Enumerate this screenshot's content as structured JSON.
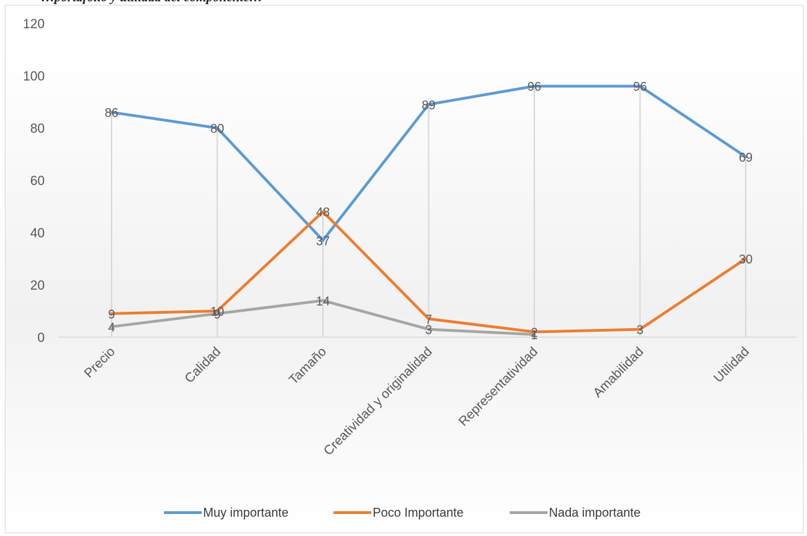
{
  "caption": "…portafolio y utilidad del componente…",
  "chart_data": {
    "type": "line",
    "categories": [
      "Precio",
      "Calidad",
      "Tamaño",
      "Creatividad y originalidad",
      "Representatividad",
      "Amabilidad",
      "Utilidad"
    ],
    "series": [
      {
        "name": "Muy importante",
        "color": "#5b9bd5",
        "values": [
          86,
          80,
          37,
          89,
          96,
          96,
          69
        ]
      },
      {
        "name": "Poco Importante",
        "color": "#ed7d31",
        "values": [
          9,
          10,
          48,
          7,
          2,
          3,
          30
        ]
      },
      {
        "name": "Nada importante",
        "color": "#a5a5a5",
        "values": [
          4,
          9,
          14,
          3,
          1,
          null,
          null
        ]
      }
    ],
    "ylim": [
      0,
      120
    ],
    "yticks": [
      0,
      20,
      40,
      60,
      80,
      100,
      120
    ],
    "grid": "vertical drop lines at categories",
    "legend": "bottom",
    "title": "",
    "xlabel": "",
    "ylabel": ""
  }
}
